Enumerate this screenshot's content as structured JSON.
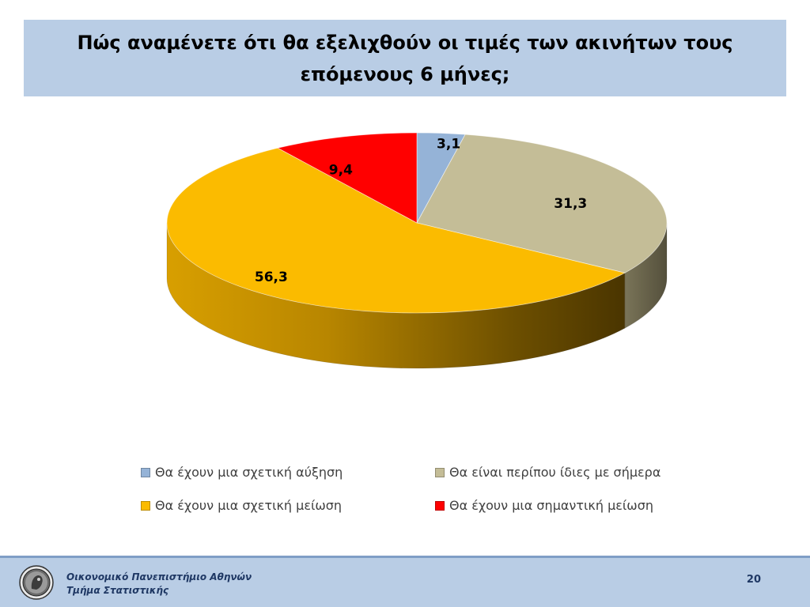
{
  "title": "Πώς αναμένετε ότι θα εξελιχθούν οι τιμές των ακινήτων τους επόμενους 6 μήνες;",
  "chart_data": {
    "type": "pie",
    "title": "Πώς αναμένετε ότι θα εξελιχθούν οι τιμές των ακινήτων τους επόμενους 6 μήνες;",
    "legend_position": "bottom",
    "slices": [
      {
        "label": "Θα έχουν μια σχετική αύξηση",
        "value": 3.1,
        "display": "3,1",
        "color": "#95b3d7"
      },
      {
        "label": "Θα είναι περίπου ίδιες με σήμερα",
        "value": 31.3,
        "display": "31,3",
        "color": "#c4bd97"
      },
      {
        "label": "Θα έχουν μια σχετική μείωση",
        "value": 56.3,
        "display": "56,3",
        "color": "#fbbb00"
      },
      {
        "label": "Θα έχουν μια σημαντική μείωση",
        "value": 9.4,
        "display": "9,4",
        "color": "#ff0000"
      }
    ]
  },
  "footer": {
    "institution": "Οικονομικό Πανεπιστήμιο Αθηνών",
    "department": "Τμήμα Στατιστικής",
    "page_number": "20",
    "logo_icon": "university-seal-icon"
  }
}
